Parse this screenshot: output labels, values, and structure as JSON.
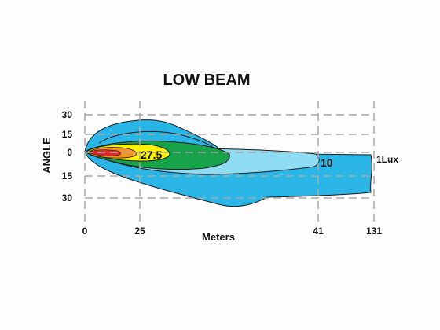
{
  "title": "LOW BEAM",
  "y_axis": {
    "label": "ANGLE",
    "ticks": [
      "30",
      "15",
      "0",
      "15",
      "30"
    ]
  },
  "x_axis": {
    "label": "Meters",
    "ticks": [
      "0",
      "25",
      "41",
      "131"
    ]
  },
  "contours": {
    "lux_27_5": "27.5",
    "lux_10": "10",
    "lux_1": "1Lux"
  },
  "colors": {
    "outer_blue": "#29b6e6",
    "light_blue": "#8fdcf5",
    "green": "#16a34a",
    "yellow": "#fff200",
    "orange": "#f7941d",
    "red": "#e3262b",
    "grid": "#a8a8a8"
  }
}
